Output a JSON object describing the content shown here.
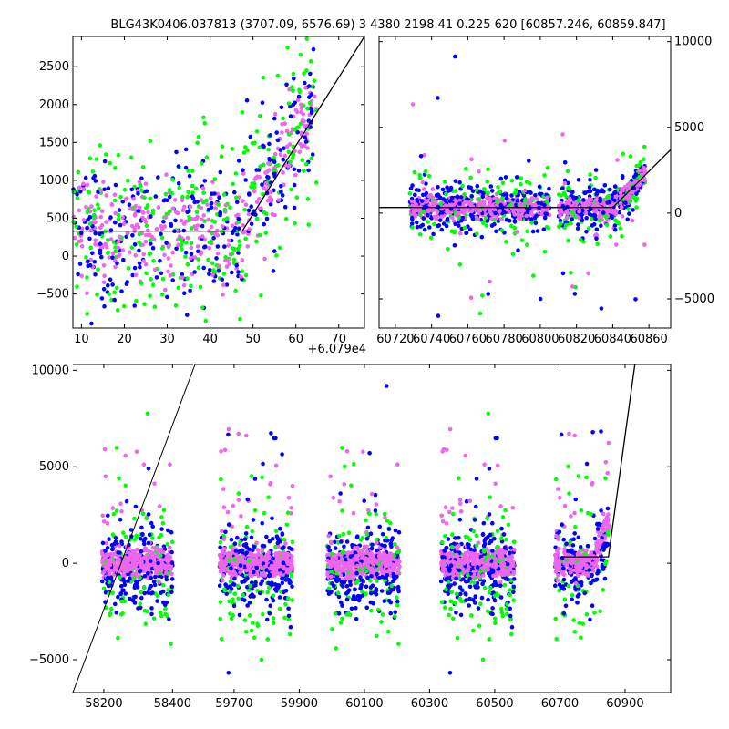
{
  "title": "BLG43K0406.037813 (3707.09, 6576.69)    3 4380 2198.41 0.225 620 [60857.246, 60859.847]",
  "colors": {
    "green": "#00ff00",
    "blue": "#0000ff",
    "magenta": "#ee66ee",
    "model": "#000000"
  },
  "chart_data": [
    {
      "type": "scatter",
      "panel": "zoom-peak",
      "xlim": [
        60798,
        60866
      ],
      "ylim": [
        -950,
        2900
      ],
      "xticks": [
        10,
        20,
        30,
        40,
        50,
        60,
        70
      ],
      "xtick_labels": [
        "10",
        "20",
        "30",
        "40",
        "50",
        "60",
        "70"
      ],
      "x_offset_label": "+6.079e4",
      "yticks": [
        -500,
        0,
        500,
        1000,
        1500,
        2000,
        2500
      ],
      "ytick_labels": [
        "−500",
        "0",
        "500",
        "1000",
        "1500",
        "2000",
        "2500"
      ],
      "series": [
        {
          "name": "green",
          "color": "#00ff00"
        },
        {
          "name": "blue",
          "color": "#0000ff"
        },
        {
          "name": "magenta",
          "color": "#ee66ee"
        }
      ],
      "model_line": {
        "x": [
          60798,
          60837.5,
          60866
        ],
        "y": [
          330,
          330,
          2900
        ]
      }
    },
    {
      "type": "scatter",
      "panel": "season-end",
      "xlim": [
        60711,
        60872
      ],
      "ylim": [
        -6700,
        10300
      ],
      "xticks": [
        60720,
        60740,
        60760,
        60780,
        60800,
        60820,
        60840,
        60860
      ],
      "xtick_labels": [
        "60720",
        "60740",
        "60760",
        "60780",
        "60800",
        "60820",
        "60840",
        "60860"
      ],
      "yticks": [
        -5000,
        0,
        5000,
        10000
      ],
      "ytick_labels": [
        "−5000",
        "0",
        "5000",
        "10000"
      ],
      "yaxis_side": "right",
      "model_line": {
        "x": [
          60711,
          60840,
          60872
        ],
        "y": [
          330,
          330,
          3700
        ]
      }
    },
    {
      "type": "scatter",
      "panel": "full-light-curve",
      "ylim": [
        -6700,
        10300
      ],
      "yticks": [
        -5000,
        0,
        5000,
        10000
      ],
      "ytick_labels": [
        "−5000",
        "0",
        "5000",
        "10000"
      ],
      "segments": [
        {
          "xlim": [
            58110,
            58460
          ],
          "xticks": [
            58200,
            58400
          ],
          "xtick_labels": [
            "58200",
            "58400"
          ],
          "season": [
            58195,
            58400
          ]
        },
        {
          "xlim": [
            59580,
            61040
          ],
          "xticks": [
            59700,
            59900,
            60100,
            60300,
            60500,
            60700,
            60900
          ],
          "xtick_labels": [
            "59700",
            "59900",
            "60100",
            "60300",
            "60500",
            "60700",
            "60900"
          ],
          "seasons": [
            [
              59655,
              59880
            ],
            [
              59985,
              60210
            ],
            [
              60335,
              60560
            ],
            [
              60685,
              60850
            ]
          ]
        }
      ],
      "model_line": {
        "x": [
          60700,
          60849,
          60930
        ],
        "y": [
          330,
          330,
          10300
        ]
      }
    }
  ]
}
